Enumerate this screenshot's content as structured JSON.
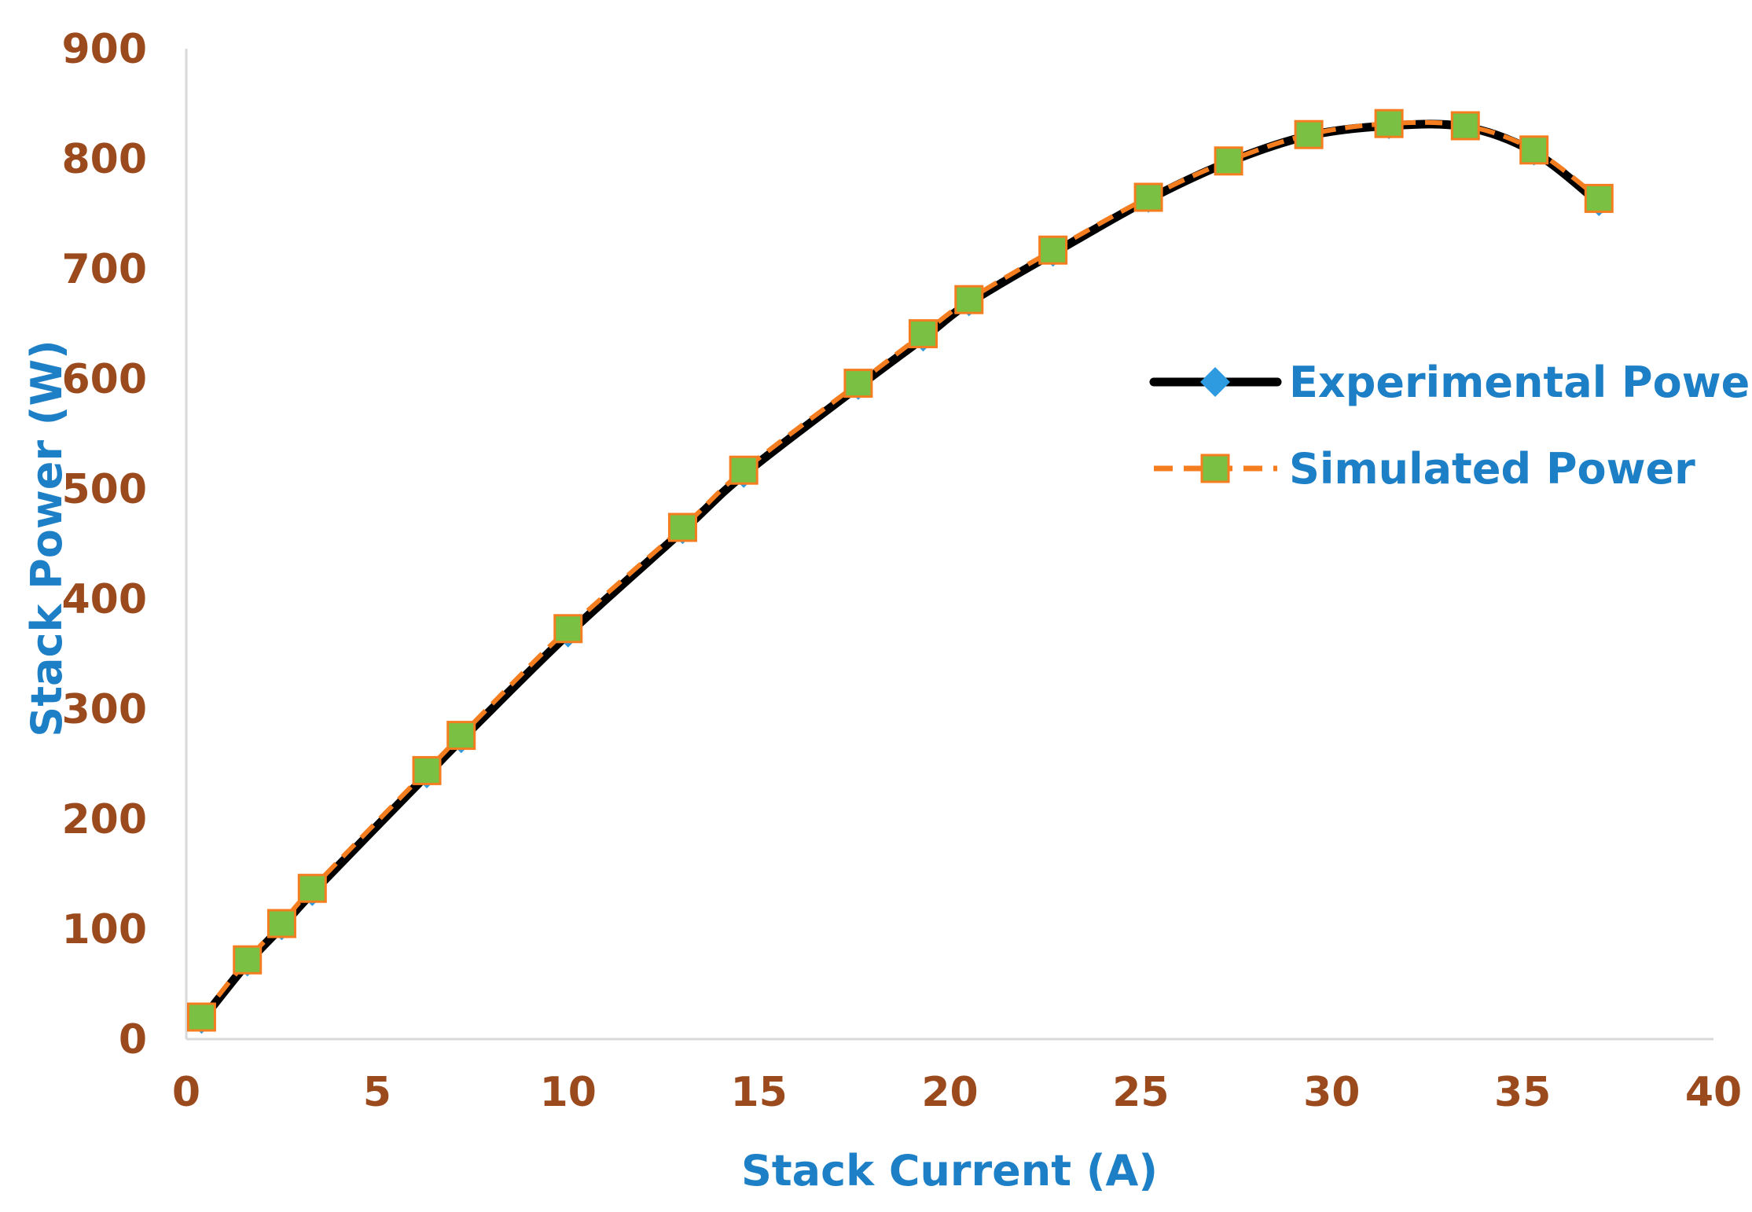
{
  "chart_data": {
    "type": "line",
    "xlabel": "Stack Current (A)",
    "ylabel": "Stack Power (W)",
    "xlim": [
      0,
      40
    ],
    "ylim": [
      0,
      900
    ],
    "x_ticks": [
      "0",
      "5",
      "10",
      "15",
      "20",
      "25",
      "30",
      "35",
      "40"
    ],
    "y_ticks": [
      "0",
      "100",
      "200",
      "300",
      "400",
      "500",
      "600",
      "700",
      "800",
      "900"
    ],
    "grid": false,
    "legend_position": "right",
    "series": [
      {
        "name": "Experimental Power",
        "color": "#000000",
        "marker": "diamond",
        "marker_color": "#2e9be0",
        "x": [
          0.4,
          1.6,
          2.5,
          3.3,
          6.3,
          7.2,
          10.0,
          13.0,
          14.6,
          17.6,
          19.3,
          20.5,
          22.7,
          25.2,
          27.3,
          29.4,
          31.5,
          33.5,
          35.3,
          37.0
        ],
        "y": [
          17,
          69,
          102,
          133,
          240,
          272,
          368,
          462,
          513,
          593,
          637,
          669,
          714,
          763,
          797,
          821,
          830,
          829,
          806,
          760
        ]
      },
      {
        "name": "Simulated Power",
        "color": "#f47d20",
        "marker": "square",
        "marker_color": "#7ac143",
        "x": [
          0.4,
          1.6,
          2.5,
          3.3,
          6.3,
          7.2,
          10.0,
          13.0,
          14.6,
          17.6,
          19.3,
          20.5,
          22.7,
          25.2,
          27.3,
          29.4,
          31.5,
          33.5,
          35.3,
          37.0
        ],
        "y": [
          20,
          72,
          105,
          137,
          244,
          276,
          373,
          465,
          517,
          596,
          641,
          672,
          717,
          765,
          798,
          822,
          832,
          830,
          808,
          764
        ]
      }
    ]
  }
}
